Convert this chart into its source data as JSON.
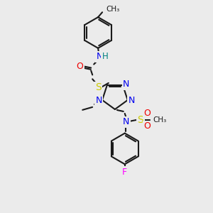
{
  "bg_color": "#ebebeb",
  "atom_colors": {
    "C": "#1a1a1a",
    "N": "#0000ee",
    "O": "#ee0000",
    "S": "#cccc00",
    "F": "#ff00ff",
    "H": "#008080"
  },
  "bond_color": "#1a1a1a",
  "figsize": [
    3.0,
    3.0
  ],
  "dpi": 100
}
